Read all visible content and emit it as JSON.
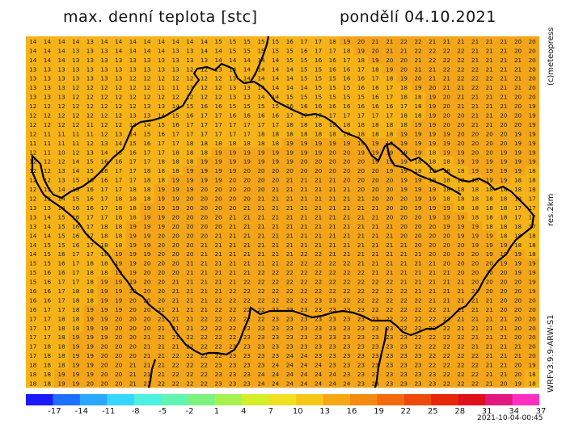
{
  "header": {
    "title": "max. denní teplota [stc]",
    "date": "pondělí 04.10.2021"
  },
  "side": {
    "copyright": "(c)meteopress",
    "resolution": "res.2km",
    "model": "WRFv3.9.9-ARW-S1"
  },
  "colorbar": {
    "labels": [
      "-17",
      "-14",
      "-11",
      "-8",
      "-5",
      "-2",
      "1",
      "4",
      "7",
      "10",
      "13",
      "16",
      "19",
      "22",
      "25",
      "28",
      "31",
      "34",
      "37"
    ],
    "colors": [
      "#1a1aff",
      "#1f6fff",
      "#2aa8ff",
      "#35d6ff",
      "#4ef0e0",
      "#60f5b0",
      "#7cf280",
      "#a8f050",
      "#d4ee2a",
      "#f0e020",
      "#f5c818",
      "#f5a814",
      "#f58a10",
      "#f26a0e",
      "#ee4a0c",
      "#e8280a",
      "#e0101a",
      "#e01880",
      "#ff30c0"
    ]
  },
  "timestamp": "2021-10-04-00:45",
  "map": {
    "fill_colors": [
      "#f5b318",
      "#f3a51a"
    ],
    "value_rows": [
      "14 14 14 14 13 14 14 14 14 14 14 14 14 15 15 15 15 15 16 17 17 18 19 20 21 21 22 22 21 21 21 21 21 21 20 20",
      "14 14 14 13 13 13 14 14 14 14 13 13 14 14 15 15 15 15 15 16 17 17 18 19 20 21 21 22 22 22 22 21 21 21 20 20",
      "14 14 14 13 13 13 13 13 13 13 13 13 13 14 14 14 14 14 15 15 16 16 17 18 19 20 20 21 22 22 22 21 21 21 21 20",
      "13 13 13 13 13 13 13 13 13 13 13 12 12 13 14 14 14 14 14 15 15 16 16 17 18 19 20 21 21 22 22 22 21 21 21 20",
      "13 13 13 13 13 13 13 12 12 12 12 12 12 12 13 14 14 14 14 15 15 15 16 16 17 18 19 20 21 21 22 22 22 21 21 20",
      "13 13 13 12 12 12 12 12 12 11 11 11 12 12 13 13 14 14 14 14 15 15 15 16 16 17 18 19 20 21 21 22 21 21 21 20",
      "13 13 13 12 12 12 12 12 12 12 12 12 12 12 13 13 14 14 15 15 15 15 15 15 16 17 18 18 19 20 21 21 21 21 20 20",
      "12 12 12 12 12 12 12 12 13 13 14 15 16 16 15 15 15 15 16 16 16 16 16 16 16 16 17 18 19 20 21 21 21 21 20 19",
      "12 12 12 12 12 12 12 13 13 14 15 16 17 17 16 16 16 16 17 17 17 17 17 17 17 17 18 18 19 20 20 21 21 20 20 19",
      "12 12 12 12 11 12 12 13 14 15 16 17 17 17 17 17 17 17 18 18 18 18 18 18 18 18 18 19 19 20 20 21 21 20 20 19",
      "12 11 11 11 11 12 13 14 15 16 17 17 17 17 17 17 18 18 18 18 18 18 18 18 18 18 19 19 19 19 20 20 20 20 19 19",
      "11 11 11 11 12 13 14 15 16 17 17 18 18 18 18 18 18 18 19 19 19 19 19 19 19 19 19 19 19 19 20 20 20 20 19 19",
      "12 11 10 12 13 14 15 16 17 17 18 18 18 19 19 19 19 19 19 19 19 20 20 19 19 19 19 19 18 19 19 20 20 19 19 19",
      "12 12 12 14 15 16 16 17 17 18 18 18 19 19 19 19 19 19 19 20 20 20 20 20 19 19 19 18 18 18 19 19 19 19 19 19",
      "12 12 13 14 15 16 17 17 18 18 18 19 19 19 19 20 20 20 20 20 20 20 20 20 20 19 19 18 18 18 18 19 19 19 19 18",
      "12 12 13 15 16 16 17 17 18 18 19 19 19 19 20 20 20 20 21 21 21 21 20 20 20 20 19 19 18 18 18 18 19 19 18 18",
      "12 13 14 15 16 17 17 18 18 19 19 19 20 20 20 20 20 21 21 21 21 21 21 20 20 20 19 19 19 18 18 18 18 18 18 18",
      "12 13 14 15 16 17 18 18 18 19 19 20 20 20 20 20 21 21 21 21 21 21 21 21 20 20 20 19 19 18 18 18 18 18 18 17",
      "13 13 14 16 16 17 18 18 19 19 19 20 20 20 20 21 21 21 21 21 21 21 21 21 21 20 20 19 19 19 18 18 18 18 17 17",
      "13 14 15 16 17 17 18 18 19 19 20 20 20 20 21 21 21 21 21 21 21 21 21 21 21 20 20 20 19 19 19 18 18 18 17 17",
      "13 14 15 16 17 18 18 19 19 19 20 20 20 20 21 21 21 21 21 21 21 21 21 21 21 21 20 20 20 19 19 19 18 18 18 17",
      "14 14 15 16 17 18 18 19 19 20 20 20 20 21 21 21 21 21 21 21 21 21 21 21 21 21 20 20 20 20 19 19 19 18 18 18",
      "14 15 15 16 17 18 18 19 19 20 20 20 21 21 21 21 21 21 21 21 21 21 21 21 21 21 21 20 20 20 20 19 19 19 18 18",
      "14 15 16 17 17 18 19 19 19 20 20 20 21 21 21 21 21 21 21 22 22 21 21 21 21 21 21 21 20 20 20 20 19 19 19 18",
      "15 15 16 17 18 18 19 19 20 20 20 21 21 21 21 21 21 21 22 22 22 22 22 21 21 21 21 21 21 20 20 20 20 19 19 19",
      "15 16 16 17 18 18 19 19 20 20 20 21 21 21 21 21 22 22 22 22 22 22 22 22 21 21 21 21 21 21 20 20 20 20 19 19",
      "15 16 17 17 18 19 19 19 20 20 21 21 21 21 21 22 22 22 22 22 22 22 22 22 22 22 21 21 21 21 21 20 20 20 20 19",
      "16 16 17 18 18 19 19 20 20 20 21 21 21 21 22 22 22 22 22 22 22 22 22 22 22 22 22 21 21 21 21 21 20 20 20 19",
      "16 16 17 18 18 19 19 20 20 20 21 21 21 22 22 22 22 22 22 22 23 23 22 22 22 22 22 22 21 21 21 21 21 20 20 20",
      "16 17 17 18 19 19 19 20 20 21 21 21 21 22 22 22 22 22 23 23 23 23 23 23 22 22 22 22 22 21 21 21 21 20 20 20",
      "17 17 18 18 19 19 20 20 20 21 21 21 22 22 22 22 22 23 23 23 23 23 23 23 23 22 22 22 22 22 21 21 21 21 20 20",
      "17 17 18 18 19 19 20 20 20 21 21 21 22 22 22 22 23 23 23 23 23 23 23 23 23 23 22 22 22 22 21 21 21 21 20 20",
      "17 17 18 19 19 19 20 20 21 21 21 22 22 22 22 23 23 23 23 23 23 23 23 23 23 23 23 22 22 22 22 21 21 21 20 20",
      "17 18 18 19 19 20 20 20 21 21 21 22 22 22 23 23 23 23 23 23 23 23 23 23 23 23 23 22 22 22 22 21 21 21 21 20",
      "17 18 18 19 19 20 20 20 21 21 22 22 22 22 23 23 23 23 24 24 23 23 23 23 23 23 23 23 22 22 22 22 21 21 21 20",
      "18 18 18 19 19 20 20 21 21 21 22 22 22 23 23 23 23 24 24 24 24 23 23 23 23 23 23 23 22 22 22 22 21 21 20 19",
      "18 18 19 19 19 20 20 21 21 21 22 22 22 23 23 23 24 24 24 24 24 24 23 23 23 23 23 23 23 22 22 22 21 21 20 18",
      "18 18 19 19 20 20 20 21 21 22 22 22 22 23 23 23 24 24 24 24 24 24 24 23 23 23 23 23 23 22 22 22 21 20 19 18"
    ]
  }
}
